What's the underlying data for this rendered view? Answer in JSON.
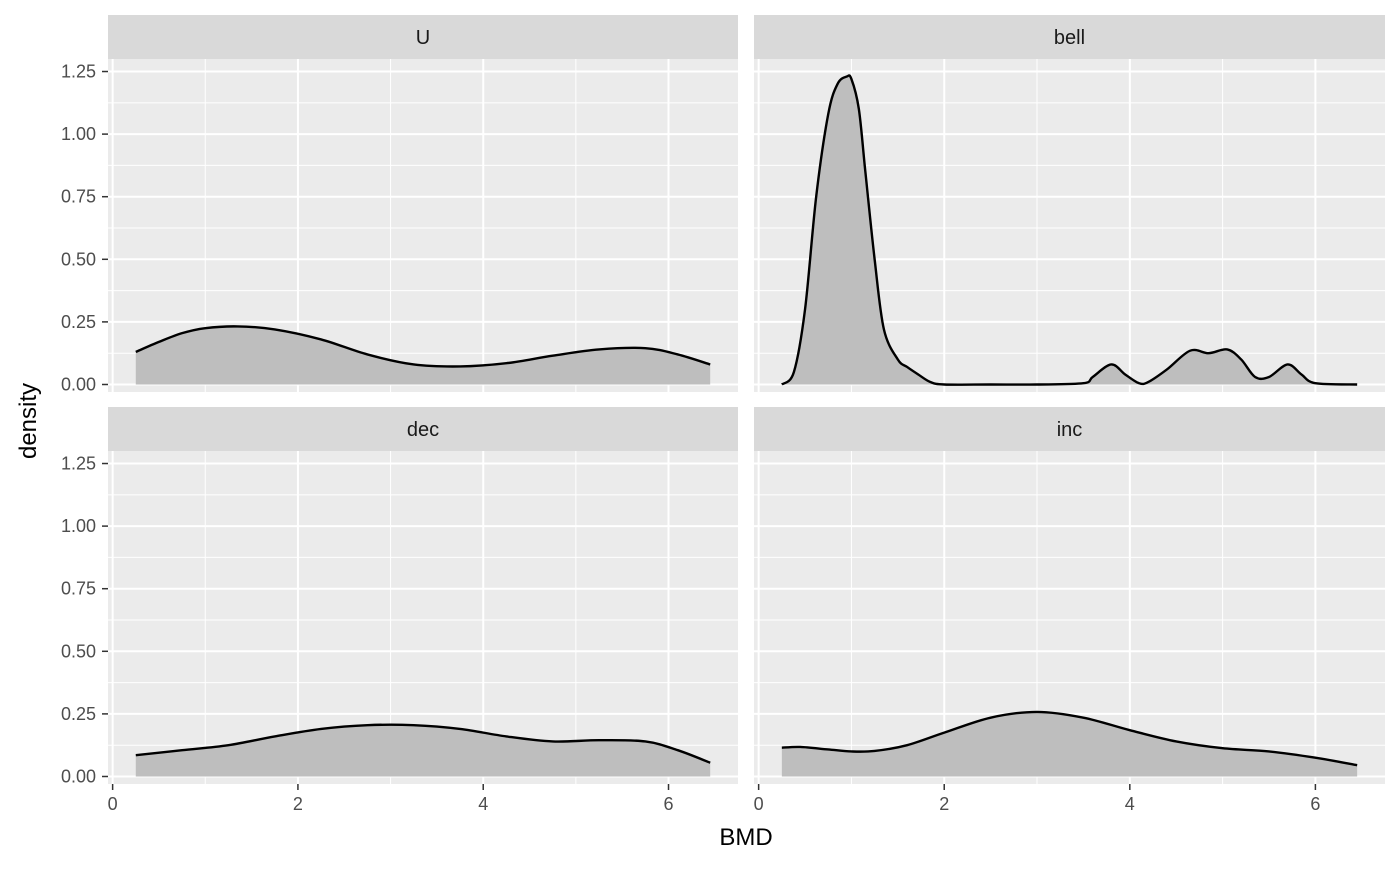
{
  "chart_data": {
    "type": "area",
    "subtype": "faceted density plot (2x2 facet grid)",
    "title": "",
    "xlabel": "BMD",
    "ylabel": "density",
    "xlim": [
      -0.05,
      6.75
    ],
    "ylim": [
      -0.03,
      1.3
    ],
    "x_ticks": [
      0,
      2,
      4,
      6
    ],
    "x_tick_labels": [
      "0",
      "2",
      "4",
      "6"
    ],
    "y_ticks": [
      0,
      0.25,
      0.5,
      0.75,
      1.0,
      1.25
    ],
    "y_tick_labels": [
      "0.00",
      "0.25",
      "0.50",
      "0.75",
      "1.00",
      "1.25"
    ],
    "grid": true,
    "legend": "none",
    "colors": {
      "panel_background": "#ebebeb",
      "strip_background": "#d9d9d9",
      "grid_line": "#ffffff",
      "fill": "#bebebe",
      "line": "#000000",
      "tick_label": "#4d4d4d"
    },
    "facets": [
      {
        "label": "U",
        "x": [
          0.25,
          0.5,
          0.75,
          1.0,
          1.35,
          1.75,
          2.25,
          2.75,
          3.25,
          3.75,
          4.25,
          4.75,
          5.25,
          5.75,
          6.1,
          6.45
        ],
        "y": [
          0.13,
          0.17,
          0.205,
          0.225,
          0.232,
          0.22,
          0.18,
          0.12,
          0.08,
          0.072,
          0.085,
          0.115,
          0.14,
          0.145,
          0.12,
          0.08
        ]
      },
      {
        "label": "bell",
        "x": [
          0.25,
          0.38,
          0.5,
          0.62,
          0.75,
          0.85,
          0.95,
          1.0,
          1.08,
          1.15,
          1.25,
          1.35,
          1.5,
          1.6,
          1.72,
          1.85,
          2.0,
          2.5,
          3.0,
          3.5,
          3.6,
          3.8,
          3.95,
          4.1,
          4.2,
          4.4,
          4.65,
          4.85,
          5.05,
          5.2,
          5.35,
          5.5,
          5.7,
          5.85,
          6.0,
          6.45
        ],
        "y": [
          0.0,
          0.05,
          0.3,
          0.75,
          1.08,
          1.2,
          1.23,
          1.22,
          1.1,
          0.85,
          0.5,
          0.22,
          0.1,
          0.07,
          0.04,
          0.01,
          0.0,
          0.0,
          0.0,
          0.005,
          0.03,
          0.08,
          0.04,
          0.005,
          0.01,
          0.06,
          0.135,
          0.125,
          0.14,
          0.1,
          0.03,
          0.03,
          0.08,
          0.04,
          0.005,
          0.0
        ]
      },
      {
        "label": "dec",
        "x": [
          0.25,
          0.75,
          1.25,
          1.75,
          2.25,
          2.75,
          3.25,
          3.75,
          4.25,
          4.75,
          5.25,
          5.75,
          6.1,
          6.45
        ],
        "y": [
          0.085,
          0.105,
          0.125,
          0.16,
          0.19,
          0.205,
          0.205,
          0.19,
          0.16,
          0.14,
          0.145,
          0.14,
          0.105,
          0.055
        ]
      },
      {
        "label": "inc",
        "x": [
          0.25,
          0.45,
          0.75,
          1.0,
          1.25,
          1.6,
          2.0,
          2.5,
          3.0,
          3.5,
          4.0,
          4.5,
          5.0,
          5.5,
          6.0,
          6.45
        ],
        "y": [
          0.115,
          0.118,
          0.108,
          0.1,
          0.102,
          0.125,
          0.175,
          0.235,
          0.258,
          0.235,
          0.185,
          0.14,
          0.113,
          0.1,
          0.075,
          0.045
        ]
      }
    ]
  }
}
